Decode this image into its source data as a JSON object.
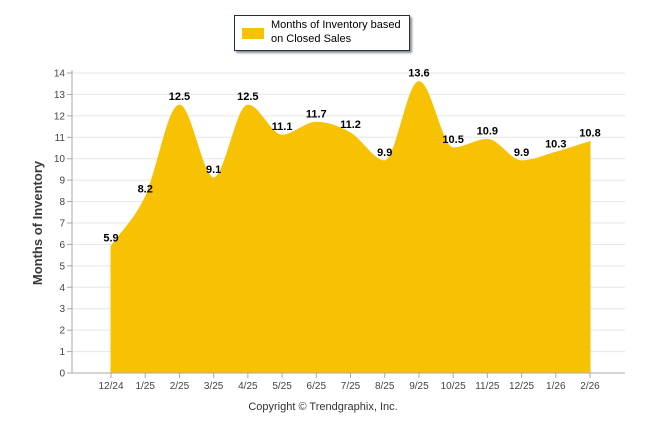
{
  "colors": {
    "series": "#f7c204",
    "grid": "#e6e6e6",
    "axis": "#a9a9a9"
  },
  "copyright": "Copyright © Trendgraphix, Inc.",
  "chart_data": {
    "type": "area",
    "title": "",
    "xlabel": "",
    "ylabel": "Months of Inventory",
    "ylim": [
      0,
      14
    ],
    "yticks": [
      0,
      1,
      2,
      3,
      4,
      5,
      6,
      7,
      8,
      9,
      10,
      11,
      12,
      13,
      14
    ],
    "grid": true,
    "legend_position": "top-center",
    "categories": [
      "12/24",
      "1/25",
      "2/25",
      "3/25",
      "4/25",
      "5/25",
      "6/25",
      "7/25",
      "8/25",
      "9/25",
      "10/25",
      "11/25",
      "12/25",
      "1/26",
      "2/26"
    ],
    "series": [
      {
        "name": "Months of Inventory based on Closed Sales",
        "values": [
          5.9,
          8.2,
          12.5,
          9.1,
          12.5,
          11.1,
          11.7,
          11.2,
          9.9,
          13.6,
          10.5,
          10.9,
          9.9,
          10.3,
          10.8
        ],
        "labels": [
          "5.9",
          "8.2",
          "12.5",
          "9.1",
          "12.5",
          "11.1",
          "11.7",
          "11.2",
          "9.9",
          "13.6",
          "10.5",
          "10.9",
          "9.9",
          "10.3",
          "10.8"
        ]
      }
    ]
  }
}
